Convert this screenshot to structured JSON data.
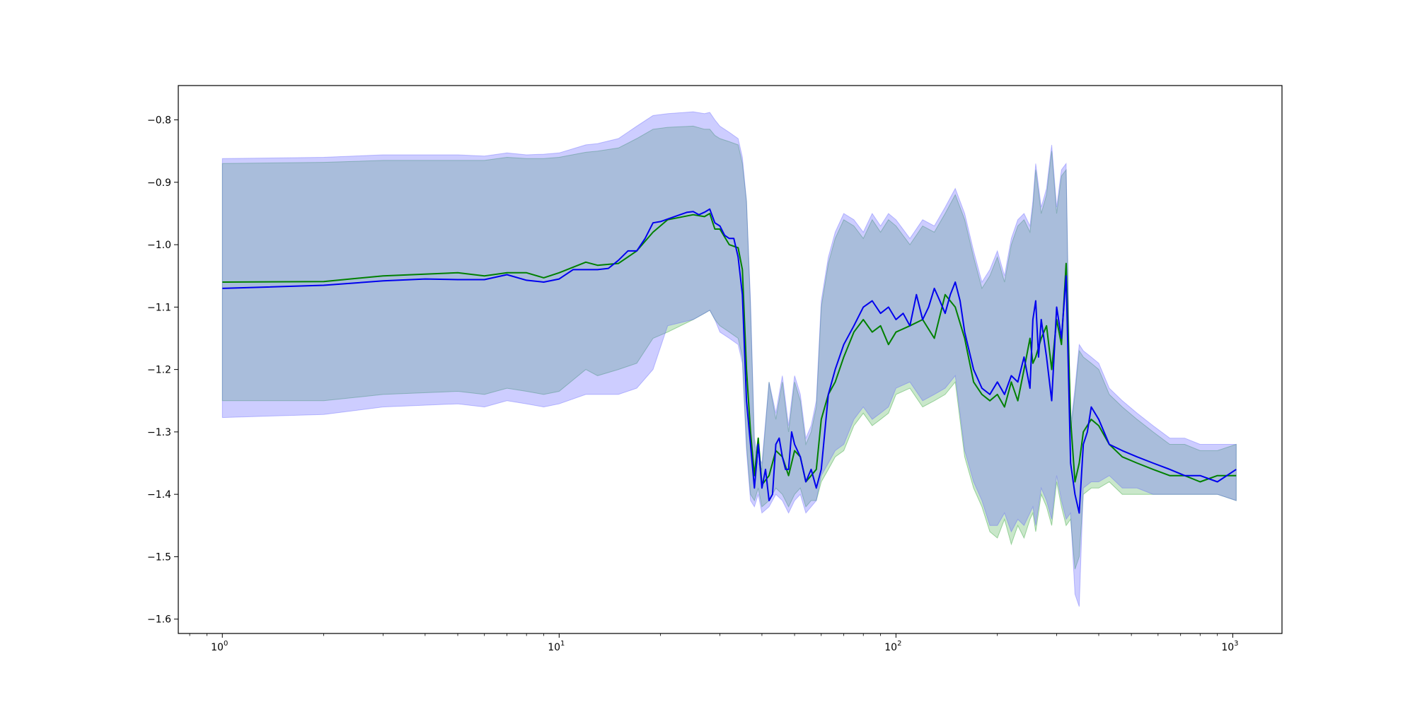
{
  "chart_data": {
    "type": "line",
    "title": "",
    "xlabel": "",
    "ylabel": "",
    "x_scale": "log",
    "xlim": [
      0.74,
      1400
    ],
    "ylim": [
      -1.623,
      -0.745
    ],
    "grid": false,
    "legend": "none",
    "x_ticks": [
      {
        "value": 1,
        "base": "10",
        "exp": "0"
      },
      {
        "value": 10,
        "base": "10",
        "exp": "1"
      },
      {
        "value": 100,
        "base": "10",
        "exp": "2"
      },
      {
        "value": 1000,
        "base": "10",
        "exp": "3"
      }
    ],
    "y_ticks": [
      -0.8,
      -0.9,
      -1.0,
      -1.1,
      -1.2,
      -1.3,
      -1.4,
      -1.5,
      -1.6
    ],
    "y_tick_labels": [
      "−0.8",
      "−0.9",
      "−1.0",
      "−1.1",
      "−1.2",
      "−1.3",
      "−1.4",
      "−1.5",
      "−1.6"
    ],
    "series": [
      {
        "color": "#008000",
        "band_color": "#4caf50",
        "band_opacity": 0.3,
        "x": [
          1,
          2,
          3,
          5,
          6,
          7,
          8,
          9,
          10,
          12,
          13,
          15,
          17,
          19,
          21,
          25,
          27,
          28,
          29,
          30,
          32,
          34,
          35,
          36,
          37,
          38,
          39,
          40,
          42,
          44,
          46,
          48,
          50,
          52,
          54,
          56,
          58,
          60,
          63,
          66,
          70,
          75,
          80,
          85,
          90,
          95,
          100,
          110,
          120,
          130,
          140,
          150,
          160,
          170,
          180,
          190,
          200,
          210,
          220,
          230,
          240,
          250,
          255,
          260,
          270,
          280,
          290,
          300,
          310,
          320,
          330,
          340,
          350,
          360,
          380,
          400,
          430,
          470,
          520,
          580,
          650,
          720,
          800,
          900,
          1024
        ],
        "y": [
          -1.06,
          -1.059,
          -1.05,
          -1.045,
          -1.05,
          -1.045,
          -1.045,
          -1.053,
          -1.045,
          -1.028,
          -1.033,
          -1.03,
          -1.01,
          -0.98,
          -0.96,
          -0.952,
          -0.955,
          -0.95,
          -0.975,
          -0.975,
          -1.0,
          -1.005,
          -1.04,
          -1.2,
          -1.3,
          -1.37,
          -1.31,
          -1.385,
          -1.37,
          -1.33,
          -1.34,
          -1.37,
          -1.33,
          -1.34,
          -1.38,
          -1.37,
          -1.36,
          -1.28,
          -1.24,
          -1.22,
          -1.18,
          -1.14,
          -1.12,
          -1.14,
          -1.13,
          -1.16,
          -1.14,
          -1.13,
          -1.12,
          -1.15,
          -1.08,
          -1.1,
          -1.15,
          -1.22,
          -1.24,
          -1.25,
          -1.24,
          -1.26,
          -1.22,
          -1.25,
          -1.2,
          -1.15,
          -1.19,
          -1.18,
          -1.15,
          -1.13,
          -1.2,
          -1.12,
          -1.16,
          -1.03,
          -1.28,
          -1.38,
          -1.35,
          -1.3,
          -1.28,
          -1.29,
          -1.32,
          -1.34,
          -1.35,
          -1.36,
          -1.37,
          -1.37,
          -1.38,
          -1.37,
          -1.37
        ],
        "band_upper": [
          -0.87,
          -0.868,
          -0.865,
          -0.865,
          -0.865,
          -0.86,
          -0.862,
          -0.862,
          -0.86,
          -0.852,
          -0.85,
          -0.845,
          -0.83,
          -0.815,
          -0.812,
          -0.81,
          -0.815,
          -0.815,
          -0.825,
          -0.83,
          -0.835,
          -0.84,
          -0.87,
          -0.93,
          -1.1,
          -1.32,
          -1.35,
          -1.36,
          -1.22,
          -1.28,
          -1.22,
          -1.3,
          -1.22,
          -1.25,
          -1.32,
          -1.3,
          -1.26,
          -1.1,
          -1.03,
          -0.99,
          -0.96,
          -0.97,
          -0.99,
          -0.96,
          -0.98,
          -0.96,
          -0.97,
          -1.0,
          -0.97,
          -0.98,
          -0.95,
          -0.92,
          -0.96,
          -1.02,
          -1.07,
          -1.05,
          -1.02,
          -1.06,
          -1.0,
          -0.97,
          -0.96,
          -0.98,
          -0.94,
          -0.88,
          -0.95,
          -0.92,
          -0.85,
          -0.95,
          -0.89,
          -0.88,
          -1.3,
          -1.24,
          -1.17,
          -1.18,
          -1.19,
          -1.2,
          -1.24,
          -1.26,
          -1.28,
          -1.3,
          -1.32,
          -1.32,
          -1.33,
          -1.33,
          -1.32
        ],
        "band_lower": [
          -1.25,
          -1.25,
          -1.24,
          -1.235,
          -1.24,
          -1.23,
          -1.235,
          -1.24,
          -1.235,
          -1.2,
          -1.21,
          -1.2,
          -1.19,
          -1.15,
          -1.14,
          -1.12,
          -1.11,
          -1.105,
          -1.12,
          -1.13,
          -1.14,
          -1.15,
          -1.18,
          -1.32,
          -1.4,
          -1.41,
          -1.39,
          -1.42,
          -1.41,
          -1.39,
          -1.4,
          -1.42,
          -1.4,
          -1.39,
          -1.42,
          -1.41,
          -1.41,
          -1.38,
          -1.36,
          -1.34,
          -1.33,
          -1.29,
          -1.27,
          -1.29,
          -1.28,
          -1.27,
          -1.24,
          -1.23,
          -1.26,
          -1.25,
          -1.24,
          -1.22,
          -1.34,
          -1.39,
          -1.42,
          -1.46,
          -1.47,
          -1.44,
          -1.48,
          -1.45,
          -1.47,
          -1.44,
          -1.43,
          -1.46,
          -1.4,
          -1.42,
          -1.45,
          -1.38,
          -1.42,
          -1.45,
          -1.44,
          -1.52,
          -1.5,
          -1.4,
          -1.39,
          -1.39,
          -1.38,
          -1.4,
          -1.4,
          -1.4,
          -1.4,
          -1.4,
          -1.4,
          -1.4,
          -1.41
        ]
      },
      {
        "color": "#0000ee",
        "band_color": "#6666ff",
        "band_opacity": 0.33,
        "x": [
          1,
          2,
          3,
          4,
          5,
          6,
          7,
          8,
          9,
          10,
          11,
          12,
          13,
          14,
          15,
          16,
          17,
          18,
          19,
          20,
          22,
          24,
          25,
          26,
          27,
          28,
          29,
          30,
          31,
          32,
          33,
          34,
          35,
          36,
          37,
          38,
          39,
          40,
          41,
          42,
          43,
          44,
          45,
          46,
          47,
          48,
          49,
          50,
          52,
          54,
          56,
          58,
          60,
          63,
          66,
          70,
          75,
          80,
          85,
          90,
          95,
          100,
          105,
          110,
          115,
          120,
          125,
          130,
          135,
          140,
          145,
          150,
          155,
          160,
          170,
          180,
          190,
          200,
          210,
          220,
          230,
          240,
          250,
          255,
          260,
          265,
          270,
          280,
          290,
          300,
          310,
          320,
          330,
          340,
          350,
          360,
          370,
          380,
          400,
          430,
          470,
          520,
          580,
          650,
          720,
          800,
          900,
          1024
        ],
        "y": [
          -1.07,
          -1.065,
          -1.058,
          -1.055,
          -1.056,
          -1.056,
          -1.048,
          -1.057,
          -1.06,
          -1.055,
          -1.04,
          -1.04,
          -1.04,
          -1.038,
          -1.025,
          -1.01,
          -1.01,
          -0.99,
          -0.965,
          -0.963,
          -0.955,
          -0.948,
          -0.947,
          -0.952,
          -0.948,
          -0.943,
          -0.965,
          -0.97,
          -0.985,
          -0.99,
          -0.99,
          -1.02,
          -1.08,
          -1.25,
          -1.32,
          -1.39,
          -1.32,
          -1.39,
          -1.36,
          -1.41,
          -1.4,
          -1.32,
          -1.31,
          -1.34,
          -1.36,
          -1.36,
          -1.3,
          -1.32,
          -1.34,
          -1.38,
          -1.36,
          -1.39,
          -1.36,
          -1.24,
          -1.2,
          -1.16,
          -1.13,
          -1.1,
          -1.09,
          -1.11,
          -1.1,
          -1.12,
          -1.11,
          -1.13,
          -1.08,
          -1.12,
          -1.1,
          -1.07,
          -1.09,
          -1.11,
          -1.08,
          -1.06,
          -1.09,
          -1.14,
          -1.2,
          -1.23,
          -1.24,
          -1.22,
          -1.24,
          -1.21,
          -1.22,
          -1.18,
          -1.23,
          -1.12,
          -1.09,
          -1.18,
          -1.12,
          -1.18,
          -1.25,
          -1.1,
          -1.15,
          -1.05,
          -1.35,
          -1.4,
          -1.43,
          -1.32,
          -1.3,
          -1.26,
          -1.28,
          -1.32,
          -1.33,
          -1.34,
          -1.35,
          -1.36,
          -1.37,
          -1.37,
          -1.38,
          -1.36
        ]
      }
    ],
    "blue_band": {
      "x": [
        1,
        2,
        3,
        5,
        6,
        7,
        8,
        9,
        10,
        12,
        13,
        15,
        17,
        19,
        21,
        25,
        27,
        28,
        29,
        30,
        32,
        34,
        35,
        36,
        37,
        38,
        39,
        40,
        42,
        44,
        46,
        48,
        50,
        52,
        54,
        56,
        58,
        60,
        63,
        66,
        70,
        75,
        80,
        85,
        90,
        95,
        100,
        110,
        120,
        130,
        140,
        150,
        160,
        170,
        180,
        190,
        200,
        210,
        220,
        230,
        240,
        250,
        255,
        260,
        270,
        280,
        290,
        300,
        310,
        320,
        330,
        340,
        350,
        360,
        380,
        400,
        430,
        470,
        520,
        580,
        650,
        720,
        800,
        900,
        1024
      ],
      "upper": [
        -0.862,
        -0.86,
        -0.856,
        -0.856,
        -0.858,
        -0.853,
        -0.856,
        -0.855,
        -0.853,
        -0.84,
        -0.838,
        -0.83,
        -0.81,
        -0.793,
        -0.79,
        -0.787,
        -0.79,
        -0.788,
        -0.8,
        -0.81,
        -0.82,
        -0.83,
        -0.86,
        -0.93,
        -1.09,
        -1.31,
        -1.34,
        -1.35,
        -1.22,
        -1.27,
        -1.21,
        -1.29,
        -1.21,
        -1.24,
        -1.31,
        -1.29,
        -1.25,
        -1.09,
        -1.02,
        -0.98,
        -0.95,
        -0.96,
        -0.98,
        -0.95,
        -0.97,
        -0.95,
        -0.96,
        -0.99,
        -0.96,
        -0.97,
        -0.94,
        -0.91,
        -0.95,
        -1.01,
        -1.06,
        -1.04,
        -1.01,
        -1.05,
        -0.99,
        -0.96,
        -0.95,
        -0.97,
        -0.93,
        -0.87,
        -0.94,
        -0.91,
        -0.84,
        -0.94,
        -0.88,
        -0.87,
        -1.29,
        -1.23,
        -1.16,
        -1.17,
        -1.18,
        -1.19,
        -1.23,
        -1.25,
        -1.27,
        -1.29,
        -1.31,
        -1.31,
        -1.32,
        -1.32,
        -1.32
      ],
      "lower": [
        -1.277,
        -1.272,
        -1.26,
        -1.255,
        -1.26,
        -1.25,
        -1.255,
        -1.26,
        -1.255,
        -1.24,
        -1.24,
        -1.24,
        -1.23,
        -1.2,
        -1.13,
        -1.12,
        -1.11,
        -1.105,
        -1.12,
        -1.14,
        -1.15,
        -1.16,
        -1.19,
        -1.33,
        -1.41,
        -1.42,
        -1.4,
        -1.43,
        -1.42,
        -1.4,
        -1.41,
        -1.43,
        -1.41,
        -1.4,
        -1.43,
        -1.42,
        -1.41,
        -1.37,
        -1.35,
        -1.33,
        -1.32,
        -1.28,
        -1.26,
        -1.28,
        -1.27,
        -1.26,
        -1.23,
        -1.22,
        -1.25,
        -1.24,
        -1.23,
        -1.21,
        -1.33,
        -1.38,
        -1.41,
        -1.45,
        -1.45,
        -1.43,
        -1.46,
        -1.44,
        -1.45,
        -1.43,
        -1.42,
        -1.45,
        -1.39,
        -1.41,
        -1.44,
        -1.37,
        -1.41,
        -1.44,
        -1.43,
        -1.56,
        -1.58,
        -1.39,
        -1.38,
        -1.38,
        -1.37,
        -1.39,
        -1.39,
        -1.4,
        -1.4,
        -1.4,
        -1.4,
        -1.4,
        -1.41
      ]
    }
  }
}
